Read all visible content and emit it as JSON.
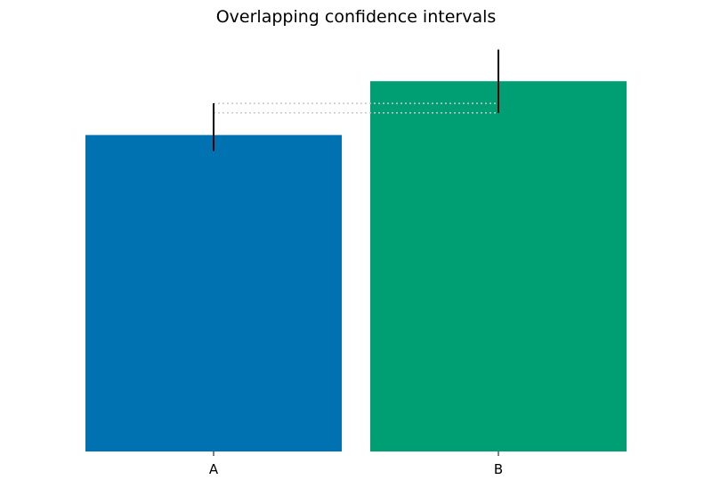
{
  "chart_data": {
    "type": "bar",
    "title": "Overlapping confidence intervals",
    "xlabel": "",
    "ylabel": "",
    "categories": [
      "A",
      "B"
    ],
    "values": [
      5.0,
      5.85
    ],
    "error_low": [
      4.75,
      5.35
    ],
    "error_high": [
      5.5,
      6.35
    ],
    "colors": [
      "#0072b2",
      "#009e73"
    ],
    "ylim": [
      0,
      6.5
    ],
    "grid": false,
    "y_axis_visible": false,
    "overlap_guides": [
      5.35,
      5.5
    ],
    "overlap_guide_color": "#c8c8c8",
    "error_bar_color": "#000000"
  }
}
